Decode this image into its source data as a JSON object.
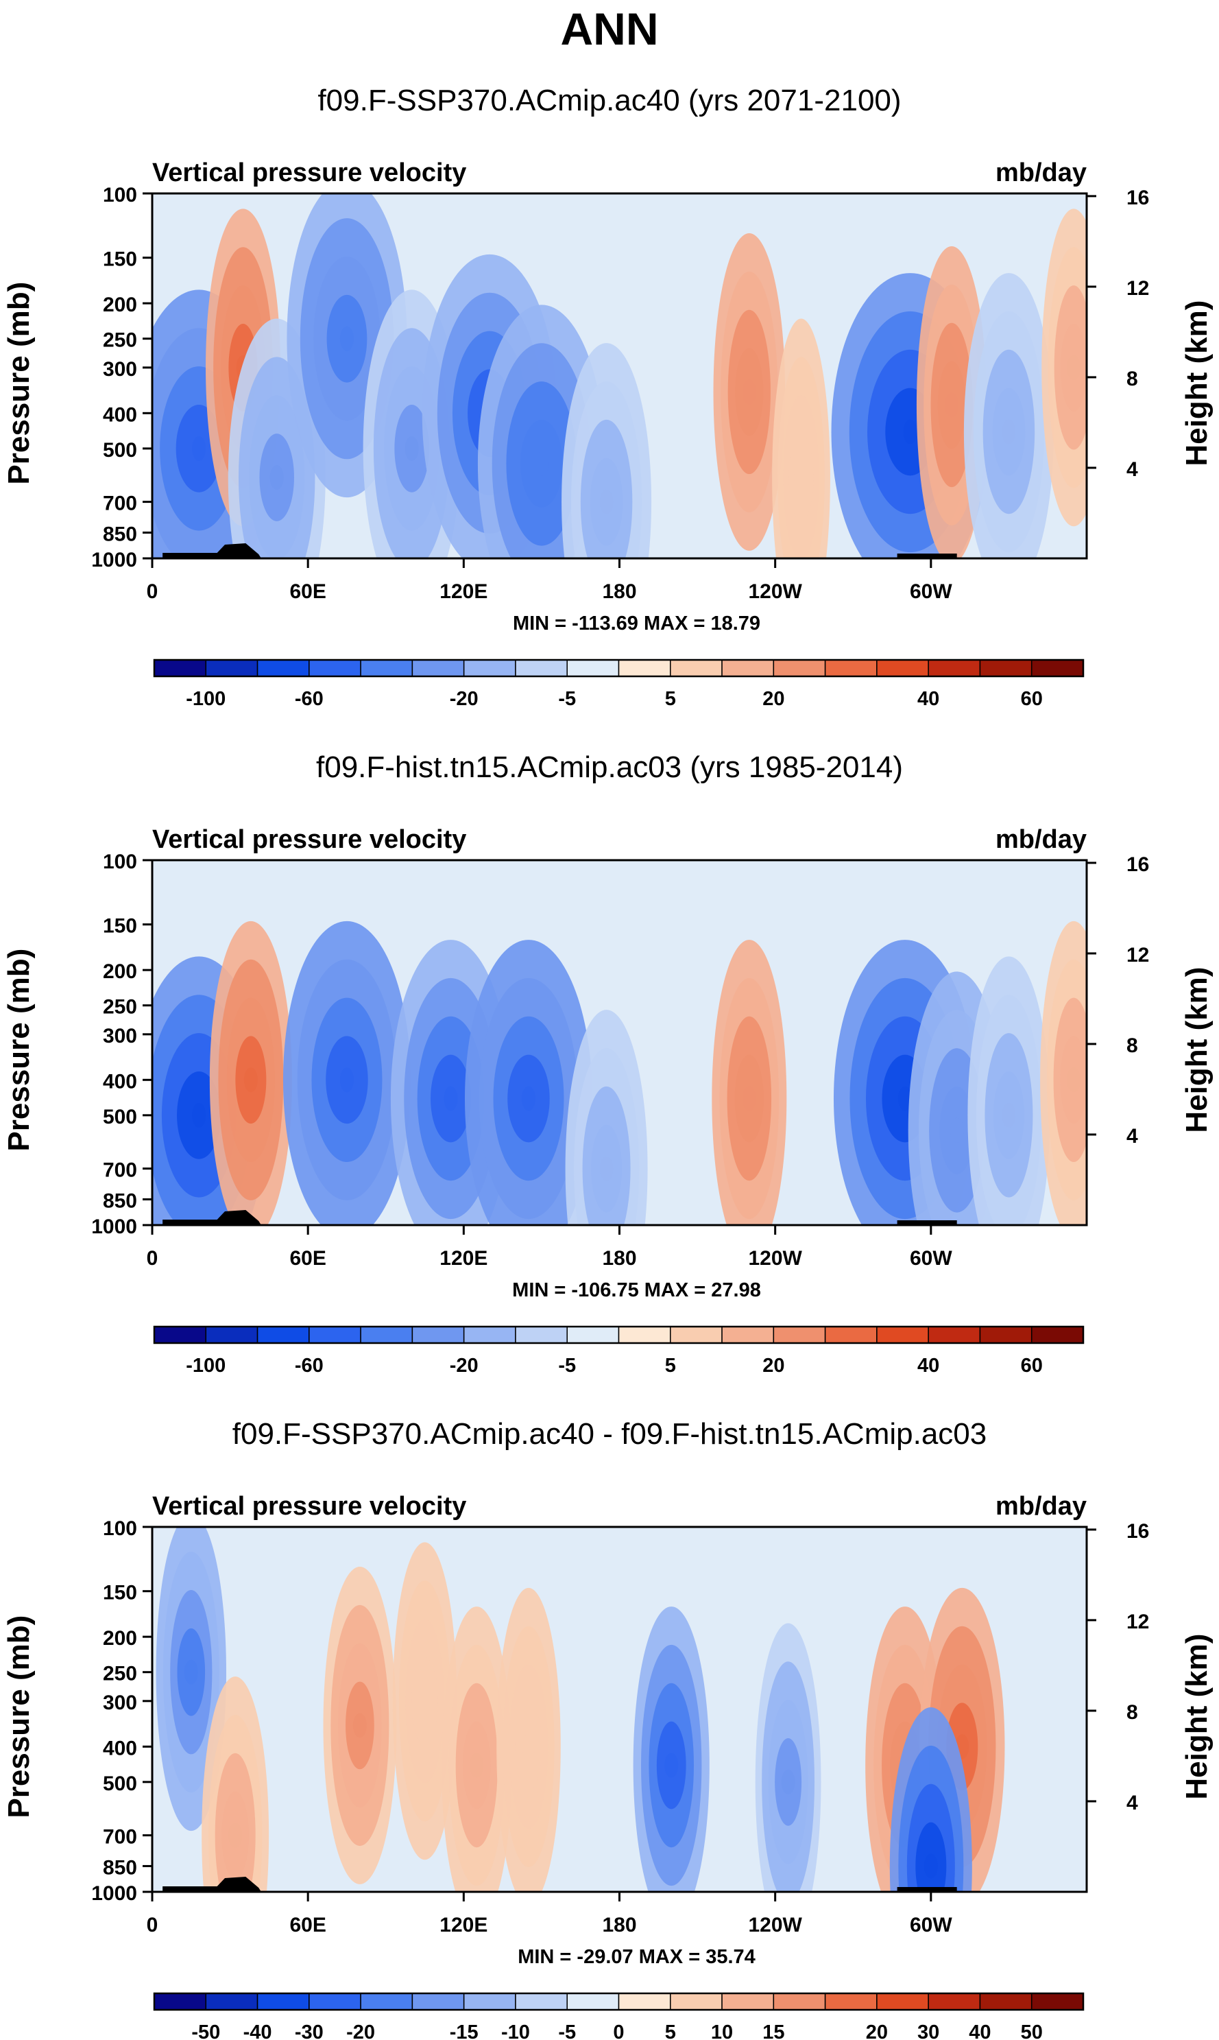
{
  "title": "ANN",
  "chart_data": [
    {
      "type": "heatmap",
      "title": "f09.F-SSP370.ACmip.ac40 (yrs 2071-2100)",
      "field_label": "Vertical pressure velocity",
      "units": "mb/day",
      "ylabel": "Pressure (mb)",
      "y2label": "Height (km)",
      "x_ticks": [
        "0",
        "60E",
        "120E",
        "180",
        "120W",
        "60W"
      ],
      "x_tick_lon": [
        0,
        60,
        120,
        180,
        240,
        300
      ],
      "xlim": [
        0,
        360
      ],
      "y_ticks": [
        "100",
        "150",
        "200",
        "250",
        "300",
        "400",
        "500",
        "700",
        "850",
        "1000"
      ],
      "y_tick_values": [
        100,
        150,
        200,
        250,
        300,
        400,
        500,
        700,
        850,
        1000
      ],
      "ylim": [
        1000,
        100
      ],
      "y2_ticks": [
        "16",
        "12",
        "8",
        "4"
      ],
      "y2_tick_values": [
        16,
        12,
        8,
        4
      ],
      "stats": "MIN = -113.69  MAX =  18.79",
      "colorbar": {
        "levels": [
          "-100",
          "-60",
          "-20",
          "-5",
          "5",
          "20",
          "40",
          "60"
        ],
        "colors": [
          "#08088a",
          "#0a2dbd",
          "#0f4ce6",
          "#2c64ef",
          "#4a7ff0",
          "#6f97f0",
          "#97b5f3",
          "#bed2f5",
          "#e0ecf8",
          "#fde8d4",
          "#f9cdb0",
          "#f4b092",
          "#ef906e",
          "#ea6a42",
          "#e04a22",
          "#c02a12",
          "#a01a08",
          "#7a0a04"
        ]
      },
      "features": [
        {
          "lon": 18,
          "p": 500,
          "v": -60
        },
        {
          "lon": 35,
          "p": 300,
          "v": 15
        },
        {
          "lon": 48,
          "p": 600,
          "v": -30
        },
        {
          "lon": 75,
          "p": 250,
          "v": -45
        },
        {
          "lon": 100,
          "p": 500,
          "v": -30
        },
        {
          "lon": 130,
          "p": 400,
          "v": -55
        },
        {
          "lon": 150,
          "p": 550,
          "v": -50
        },
        {
          "lon": 175,
          "p": 700,
          "v": -25
        },
        {
          "lon": 230,
          "p": 350,
          "v": 13
        },
        {
          "lon": 250,
          "p": 600,
          "v": 4
        },
        {
          "lon": 292,
          "p": 450,
          "v": -70
        },
        {
          "lon": 308,
          "p": 380,
          "v": 12
        },
        {
          "lon": 330,
          "p": 450,
          "v": -25
        },
        {
          "lon": 355,
          "p": 300,
          "v": 8
        }
      ]
    },
    {
      "type": "heatmap",
      "title": "f09.F-hist.tn15.ACmip.ac03 (yrs 1985-2014)",
      "field_label": "Vertical pressure velocity",
      "units": "mb/day",
      "ylabel": "Pressure (mb)",
      "y2label": "Height (km)",
      "x_ticks": [
        "0",
        "60E",
        "120E",
        "180",
        "120W",
        "60W"
      ],
      "x_tick_lon": [
        0,
        60,
        120,
        180,
        240,
        300
      ],
      "xlim": [
        0,
        360
      ],
      "y_ticks": [
        "100",
        "150",
        "200",
        "250",
        "300",
        "400",
        "500",
        "700",
        "850",
        "1000"
      ],
      "y_tick_values": [
        100,
        150,
        200,
        250,
        300,
        400,
        500,
        700,
        850,
        1000
      ],
      "ylim": [
        1000,
        100
      ],
      "y2_ticks": [
        "16",
        "12",
        "8",
        "4"
      ],
      "y2_tick_values": [
        16,
        12,
        8,
        4
      ],
      "stats": "MIN = -106.75  MAX =  27.98",
      "colorbar": {
        "levels": [
          "-100",
          "-60",
          "-20",
          "-5",
          "5",
          "20",
          "40",
          "60"
        ],
        "colors": [
          "#08088a",
          "#0a2dbd",
          "#0f4ce6",
          "#2c64ef",
          "#4a7ff0",
          "#6f97f0",
          "#97b5f3",
          "#bed2f5",
          "#e0ecf8",
          "#fde8d4",
          "#f9cdb0",
          "#f4b092",
          "#ef906e",
          "#ea6a42",
          "#e04a22",
          "#c02a12",
          "#a01a08",
          "#7a0a04"
        ]
      },
      "features": [
        {
          "lon": 18,
          "p": 500,
          "v": -55
        },
        {
          "lon": 38,
          "p": 400,
          "v": 20
        },
        {
          "lon": 75,
          "p": 400,
          "v": -50
        },
        {
          "lon": 115,
          "p": 450,
          "v": -45
        },
        {
          "lon": 145,
          "p": 450,
          "v": -50
        },
        {
          "lon": 175,
          "p": 700,
          "v": -20
        },
        {
          "lon": 230,
          "p": 450,
          "v": 15
        },
        {
          "lon": 290,
          "p": 450,
          "v": -60
        },
        {
          "lon": 310,
          "p": 550,
          "v": -30
        },
        {
          "lon": 330,
          "p": 500,
          "v": -20
        },
        {
          "lon": 355,
          "p": 400,
          "v": 10
        }
      ]
    },
    {
      "type": "heatmap",
      "title": "f09.F-SSP370.ACmip.ac40 - f09.F-hist.tn15.ACmip.ac03",
      "field_label": "Vertical pressure velocity",
      "units": "mb/day",
      "ylabel": "Pressure (mb)",
      "y2label": "Height (km)",
      "x_ticks": [
        "0",
        "60E",
        "120E",
        "180",
        "120W",
        "60W"
      ],
      "x_tick_lon": [
        0,
        60,
        120,
        180,
        240,
        300
      ],
      "xlim": [
        0,
        360
      ],
      "y_ticks": [
        "100",
        "150",
        "200",
        "250",
        "300",
        "400",
        "500",
        "700",
        "850",
        "1000"
      ],
      "y_tick_values": [
        100,
        150,
        200,
        250,
        300,
        400,
        500,
        700,
        850,
        1000
      ],
      "ylim": [
        1000,
        100
      ],
      "y2_ticks": [
        "16",
        "12",
        "8",
        "4"
      ],
      "y2_tick_values": [
        16,
        12,
        8,
        4
      ],
      "stats": "MIN = -29.07  MAX =  35.74",
      "colorbar": {
        "levels": [
          "-50",
          "-40",
          "-30",
          "-20",
          "-15",
          "-10",
          "-5",
          "0",
          "5",
          "10",
          "15",
          "20",
          "30",
          "40",
          "50"
        ],
        "colors": [
          "#08088a",
          "#0a2dbd",
          "#0f4ce6",
          "#2c64ef",
          "#4a7ff0",
          "#6f97f0",
          "#97b5f3",
          "#bed2f5",
          "#e0ecf8",
          "#fde8d4",
          "#f9cdb0",
          "#f4b092",
          "#ef906e",
          "#ea6a42",
          "#e04a22",
          "#c02a12",
          "#a01a08",
          "#7a0a04"
        ]
      },
      "features": [
        {
          "lon": 15,
          "p": 250,
          "v": -12
        },
        {
          "lon": 32,
          "p": 700,
          "v": 10
        },
        {
          "lon": 80,
          "p": 350,
          "v": 14
        },
        {
          "lon": 105,
          "p": 300,
          "v": 8
        },
        {
          "lon": 125,
          "p": 450,
          "v": 12
        },
        {
          "lon": 145,
          "p": 400,
          "v": 8
        },
        {
          "lon": 200,
          "p": 450,
          "v": -16
        },
        {
          "lon": 245,
          "p": 500,
          "v": -9
        },
        {
          "lon": 290,
          "p": 450,
          "v": 18
        },
        {
          "lon": 312,
          "p": 400,
          "v": 22
        },
        {
          "lon": 300,
          "p": 850,
          "v": -20
        }
      ]
    }
  ]
}
